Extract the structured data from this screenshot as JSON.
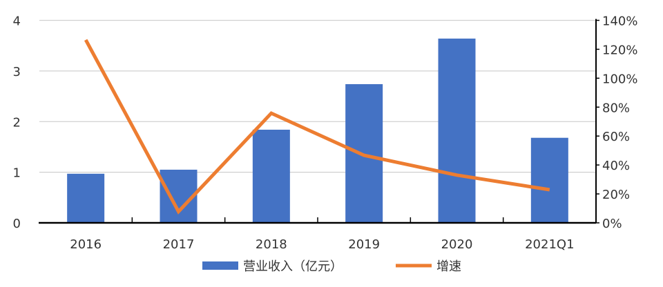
{
  "chart_data": {
    "type": "bar+line",
    "categories": [
      "2016",
      "2017",
      "2018",
      "2019",
      "2020",
      "2021Q1"
    ],
    "series": [
      {
        "name": "营业收入（亿元）",
        "type": "bar",
        "axis": "left",
        "color": "#4472C4",
        "values": [
          0.97,
          1.05,
          1.84,
          2.74,
          3.64,
          1.68
        ]
      },
      {
        "name": "增速",
        "type": "line",
        "axis": "right",
        "color": "#ED7D31",
        "values": [
          126.5,
          7.8,
          75.8,
          46.7,
          33.0,
          22.9
        ]
      }
    ],
    "left_axis": {
      "ylim": [
        0,
        4
      ],
      "ticks": [
        "0",
        "1",
        "2",
        "3",
        "4"
      ]
    },
    "right_axis": {
      "ylim": [
        0,
        140
      ],
      "ticks": [
        "0%",
        "20%",
        "40%",
        "60%",
        "80%",
        "100%",
        "120%",
        "140%"
      ]
    },
    "grid": true,
    "legend_placement": "bottom"
  }
}
